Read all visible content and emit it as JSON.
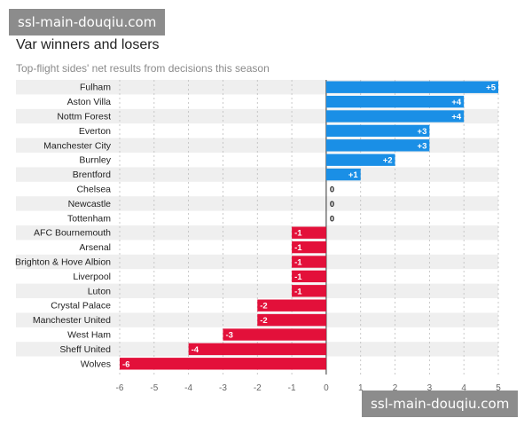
{
  "watermark": {
    "top": "ssl-main-douqiu.com",
    "bottom": "ssl-main-douqiu.com"
  },
  "header": {
    "title": "Var winners and losers",
    "subtitle": "Top-flight sides' net results from decisions this season"
  },
  "colors": {
    "positive": "#1a8fe6",
    "negative": "#e3103a",
    "band": "#efefef"
  },
  "chart_data": {
    "type": "bar",
    "orientation": "horizontal",
    "title": "Var winners and losers",
    "subtitle": "Top-flight sides' net results from decisions this season",
    "xlabel": "",
    "ylabel": "",
    "xlim": [
      -6,
      5
    ],
    "xticks": [
      "-6",
      "-5",
      "-4",
      "-3",
      "-2",
      "-1",
      "0",
      "1",
      "2",
      "3",
      "4",
      "5"
    ],
    "categories": [
      "Fulham",
      "Aston Villa",
      "Nottm Forest",
      "Everton",
      "Manchester City",
      "Burnley",
      "Brentford",
      "Chelsea",
      "Newcastle",
      "Tottenham",
      "AFC Bournemouth",
      "Arsenal",
      "Brighton & Hove Albion",
      "Liverpool",
      "Luton",
      "Crystal Palace",
      "Manchester United",
      "West Ham",
      "Sheff United",
      "Wolves"
    ],
    "values": [
      5,
      4,
      4,
      3,
      3,
      2,
      1,
      0,
      0,
      0,
      -1,
      -1,
      -1,
      -1,
      -1,
      -2,
      -2,
      -3,
      -4,
      -6
    ],
    "value_labels": [
      "+5",
      "+4",
      "+4",
      "+3",
      "+3",
      "+2",
      "+1",
      "0",
      "0",
      "0",
      "-1",
      "-1",
      "-1",
      "-1",
      "-1",
      "-2",
      "-2",
      "-3",
      "-4",
      "-6"
    ]
  }
}
